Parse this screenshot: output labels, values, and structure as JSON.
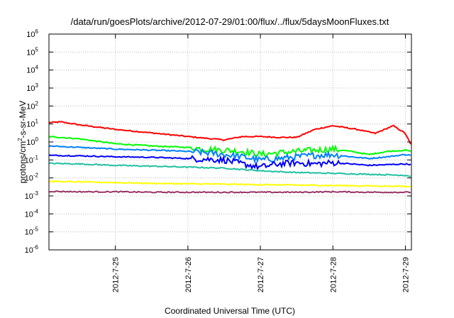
{
  "chart_data": {
    "type": "line",
    "title": "/data/run/goesPlots/archive/2012-07-29/01:00/flux/../flux/5daysMoonFluxes.txt",
    "xlabel": "Coordinated Universal Time (UTC)",
    "ylabel_parts": {
      "pre": "protons/cm",
      "sup": "2",
      "post": "-s-sr-MeV"
    },
    "yscale": "log",
    "ylim": [
      1e-06,
      1000000
    ],
    "xlim": [
      "2012-07-24 02:00",
      "2012-07-29 02:00"
    ],
    "grid": true,
    "x_ticks": [
      "2012-7-25",
      "2012-7-26",
      "2012-7-27",
      "2012-7-28",
      "2012-7-29"
    ],
    "y_ticks": [
      {
        "base": "10",
        "exp": "-6"
      },
      {
        "base": "10",
        "exp": "-5"
      },
      {
        "base": "10",
        "exp": "-4"
      },
      {
        "base": "10",
        "exp": "-3"
      },
      {
        "base": "10",
        "exp": "-2"
      },
      {
        "base": "10",
        "exp": "-1"
      },
      {
        "base": "10",
        "exp": "0"
      },
      {
        "base": "10",
        "exp": "1"
      },
      {
        "base": "10",
        "exp": "2"
      },
      {
        "base": "10",
        "exp": "3"
      },
      {
        "base": "10",
        "exp": "4"
      },
      {
        "base": "10",
        "exp": "5"
      },
      {
        "base": "10",
        "exp": "6"
      }
    ],
    "series": [
      {
        "color": "#ff0000",
        "x": [
          "2012-07-24 02:00",
          "2012-07-24 06:00",
          "2012-07-24 12:00",
          "2012-07-25 00:00",
          "2012-07-25 06:00",
          "2012-07-25 12:00",
          "2012-07-26 00:00",
          "2012-07-26 08:00",
          "2012-07-26 12:00",
          "2012-07-26 18:00",
          "2012-07-27 00:00",
          "2012-07-27 06:00",
          "2012-07-27 12:00",
          "2012-07-27 18:00",
          "2012-07-28 00:00",
          "2012-07-28 08:00",
          "2012-07-28 14:00",
          "2012-07-28 20:00",
          "2012-07-29 00:00",
          "2012-07-29 02:00"
        ],
        "y": [
          12,
          13,
          9,
          5,
          4,
          3.2,
          2,
          1.5,
          1.3,
          2,
          2,
          1.8,
          1.8,
          5,
          8,
          5,
          3,
          8,
          3,
          0.6
        ]
      },
      {
        "color": "#00ff00",
        "x": [
          "2012-07-24 02:00",
          "2012-07-24 12:00",
          "2012-07-25 00:00",
          "2012-07-25 12:00",
          "2012-07-26 00:00",
          "2012-07-26 06:00",
          "2012-07-26 12:00",
          "2012-07-26 18:00",
          "2012-07-27 00:00",
          "2012-07-27 06:00",
          "2012-07-27 12:00",
          "2012-07-27 18:00",
          "2012-07-28 00:00",
          "2012-07-28 06:00",
          "2012-07-28 12:00",
          "2012-07-28 18:00",
          "2012-07-29 00:00",
          "2012-07-29 02:00"
        ],
        "y": [
          2,
          1.5,
          0.8,
          0.6,
          0.5,
          0.4,
          0.35,
          0.3,
          0.2,
          0.25,
          0.3,
          0.35,
          0.4,
          0.3,
          0.2,
          0.3,
          0.35,
          0.3
        ]
      },
      {
        "color": "#0080ff",
        "x": [
          "2012-07-24 02:00",
          "2012-07-24 12:00",
          "2012-07-25 00:00",
          "2012-07-25 12:00",
          "2012-07-26 00:00",
          "2012-07-26 06:00",
          "2012-07-26 12:00",
          "2012-07-26 18:00",
          "2012-07-27 00:00",
          "2012-07-27 06:00",
          "2012-07-27 12:00",
          "2012-07-27 18:00",
          "2012-07-28 00:00",
          "2012-07-28 06:00",
          "2012-07-28 12:00",
          "2012-07-28 18:00",
          "2012-07-29 00:00",
          "2012-07-29 02:00"
        ],
        "y": [
          0.6,
          0.5,
          0.4,
          0.35,
          0.3,
          0.25,
          0.2,
          0.15,
          0.1,
          0.12,
          0.15,
          0.18,
          0.2,
          0.15,
          0.12,
          0.15,
          0.2,
          0.18
        ]
      },
      {
        "color": "#0000ff",
        "x": [
          "2012-07-24 02:00",
          "2012-07-24 12:00",
          "2012-07-25 00:00",
          "2012-07-25 12:00",
          "2012-07-26 00:00",
          "2012-07-26 06:00",
          "2012-07-26 12:00",
          "2012-07-26 18:00",
          "2012-07-27 00:00",
          "2012-07-27 06:00",
          "2012-07-27 12:00",
          "2012-07-27 18:00",
          "2012-07-28 00:00",
          "2012-07-28 06:00",
          "2012-07-28 12:00",
          "2012-07-28 18:00",
          "2012-07-29 00:00",
          "2012-07-29 02:00"
        ],
        "y": [
          0.18,
          0.17,
          0.15,
          0.14,
          0.12,
          0.11,
          0.1,
          0.06,
          0.04,
          0.06,
          0.07,
          0.06,
          0.07,
          0.06,
          0.05,
          0.055,
          0.06,
          0.055
        ]
      },
      {
        "color": "#20c0a0",
        "x": [
          "2012-07-24 02:00",
          "2012-07-24 12:00",
          "2012-07-25 00:00",
          "2012-07-25 12:00",
          "2012-07-26 00:00",
          "2012-07-26 12:00",
          "2012-07-27 00:00",
          "2012-07-27 12:00",
          "2012-07-28 00:00",
          "2012-07-28 12:00",
          "2012-07-29 00:00",
          "2012-07-29 02:00"
        ],
        "y": [
          0.065,
          0.06,
          0.05,
          0.045,
          0.04,
          0.035,
          0.025,
          0.02,
          0.018,
          0.016,
          0.014,
          0.012
        ]
      },
      {
        "color": "#ffff00",
        "x": [
          "2012-07-24 02:00",
          "2012-07-24 12:00",
          "2012-07-25 00:00",
          "2012-07-25 12:00",
          "2012-07-26 00:00",
          "2012-07-26 12:00",
          "2012-07-27 00:00",
          "2012-07-27 12:00",
          "2012-07-28 00:00",
          "2012-07-28 12:00",
          "2012-07-29 00:00",
          "2012-07-29 02:00"
        ],
        "y": [
          0.0065,
          0.006,
          0.0055,
          0.005,
          0.0047,
          0.0045,
          0.0042,
          0.004,
          0.0038,
          0.0036,
          0.0034,
          0.0033
        ]
      },
      {
        "color": "#993366",
        "x": [
          "2012-07-24 02:00",
          "2012-07-24 12:00",
          "2012-07-25 00:00",
          "2012-07-25 12:00",
          "2012-07-26 00:00",
          "2012-07-26 12:00",
          "2012-07-27 00:00",
          "2012-07-27 12:00",
          "2012-07-28 00:00",
          "2012-07-28 12:00",
          "2012-07-29 00:00",
          "2012-07-29 02:00"
        ],
        "y": [
          0.0018,
          0.0017,
          0.0017,
          0.0016,
          0.0016,
          0.0016,
          0.0016,
          0.0016,
          0.0017,
          0.0016,
          0.0016,
          0.0016
        ]
      }
    ]
  }
}
